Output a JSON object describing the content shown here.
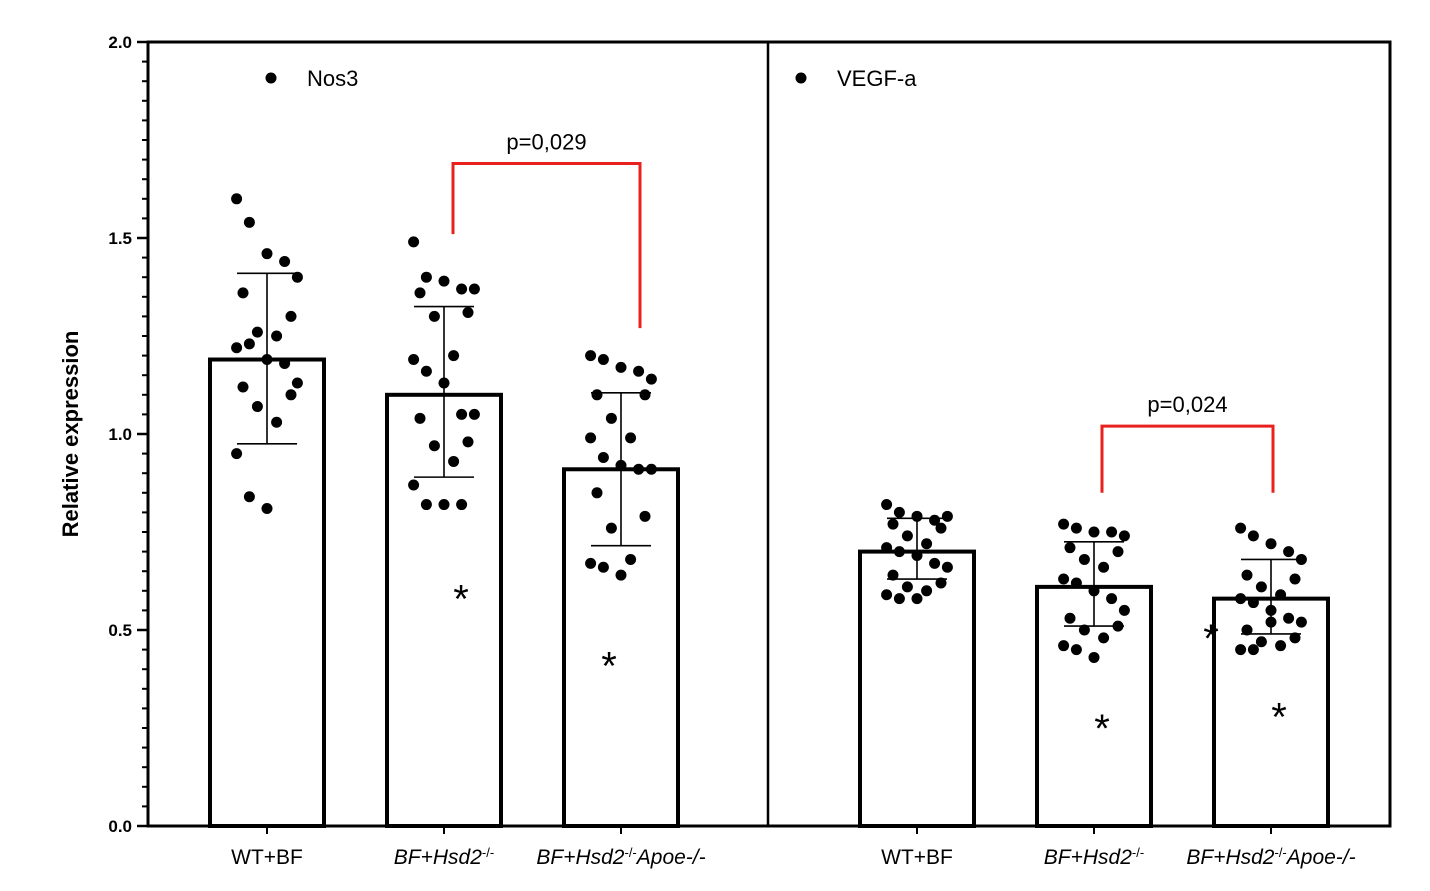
{
  "chart_data": {
    "type": "bar",
    "ylabel": "Relative expression",
    "ylim": [
      0,
      2.0
    ],
    "yticks": [
      "0.0",
      "0.5",
      "1.0",
      "1.5",
      "2.0"
    ],
    "grid": false,
    "panels": [
      {
        "legend": "Nos3",
        "categories": [
          {
            "parts": [
              {
                "t": "WT+BF",
                "style": "normal"
              }
            ]
          },
          {
            "parts": [
              {
                "t": "BF+Hsd2",
                "style": "italic"
              },
              {
                "t": "-/-",
                "style": "sup"
              }
            ]
          },
          {
            "parts": [
              {
                "t": "BF+Hsd2",
                "style": "italic"
              },
              {
                "t": "-/-",
                "style": "sup"
              },
              {
                "t": "Apoe-/-",
                "style": "italic"
              }
            ]
          }
        ],
        "means": [
          1.19,
          1.1,
          0.91
        ],
        "errors": [
          [
            0.975,
            1.41
          ],
          [
            0.89,
            1.325
          ],
          [
            0.715,
            1.105
          ]
        ],
        "points": [
          [
            1.6,
            1.54,
            1.46,
            1.44,
            1.4,
            1.36,
            1.3,
            1.26,
            1.25,
            1.22,
            1.23,
            1.19,
            1.18,
            1.13,
            1.12,
            1.1,
            1.07,
            1.03,
            0.95,
            0.84,
            0.81
          ],
          [
            1.49,
            1.4,
            1.39,
            1.37,
            1.37,
            1.36,
            1.31,
            1.3,
            1.2,
            1.19,
            1.16,
            1.13,
            1.05,
            1.05,
            1.04,
            0.98,
            0.97,
            0.93,
            0.87,
            0.82,
            0.82,
            0.82
          ],
          [
            1.2,
            1.19,
            1.17,
            1.16,
            1.14,
            1.1,
            1.1,
            1.04,
            0.99,
            0.99,
            0.94,
            0.92,
            0.91,
            0.91,
            0.85,
            0.79,
            0.76,
            0.68,
            0.67,
            0.66,
            0.64
          ]
        ],
        "stars": [
          0.59,
          0.42
        ],
        "bracket": {
          "from": 1,
          "to": 2,
          "label": "p=0,029",
          "top": 1.69,
          "left_end": 1.51,
          "right_end": 1.27
        }
      },
      {
        "legend": "VEGF-a",
        "categories": [
          {
            "parts": [
              {
                "t": "WT+BF",
                "style": "normal"
              }
            ]
          },
          {
            "parts": [
              {
                "t": "BF+Hsd2",
                "style": "italic"
              },
              {
                "t": "-/-",
                "style": "sup"
              }
            ]
          },
          {
            "parts": [
              {
                "t": "BF+Hsd2",
                "style": "italic"
              },
              {
                "t": "-/-",
                "style": "sup"
              },
              {
                "t": "Apoe-/-",
                "style": "italic"
              }
            ]
          }
        ],
        "means": [
          0.7,
          0.61,
          0.58
        ],
        "errors": [
          [
            0.63,
            0.785
          ],
          [
            0.51,
            0.725
          ],
          [
            0.49,
            0.68
          ]
        ],
        "points": [
          [
            0.82,
            0.8,
            0.79,
            0.78,
            0.79,
            0.77,
            0.76,
            0.74,
            0.72,
            0.71,
            0.7,
            0.69,
            0.67,
            0.66,
            0.64,
            0.62,
            0.61,
            0.6,
            0.59,
            0.58,
            0.58
          ],
          [
            0.77,
            0.76,
            0.75,
            0.75,
            0.74,
            0.71,
            0.7,
            0.68,
            0.66,
            0.63,
            0.62,
            0.6,
            0.58,
            0.55,
            0.53,
            0.51,
            0.5,
            0.48,
            0.46,
            0.45,
            0.43
          ],
          [
            0.76,
            0.74,
            0.72,
            0.7,
            0.68,
            0.64,
            0.63,
            0.61,
            0.59,
            0.58,
            0.57,
            0.55,
            0.53,
            0.52,
            0.5,
            0.48,
            0.47,
            0.46,
            0.45,
            0.45,
            0.52
          ]
        ],
        "stars": [
          0.26,
          0.29
        ],
        "extra_star": 0.49,
        "bracket": {
          "from": 1,
          "to": 2,
          "label": "p=0,024",
          "top": 1.02,
          "left_end": 0.85,
          "right_end": 0.85
        }
      }
    ]
  }
}
